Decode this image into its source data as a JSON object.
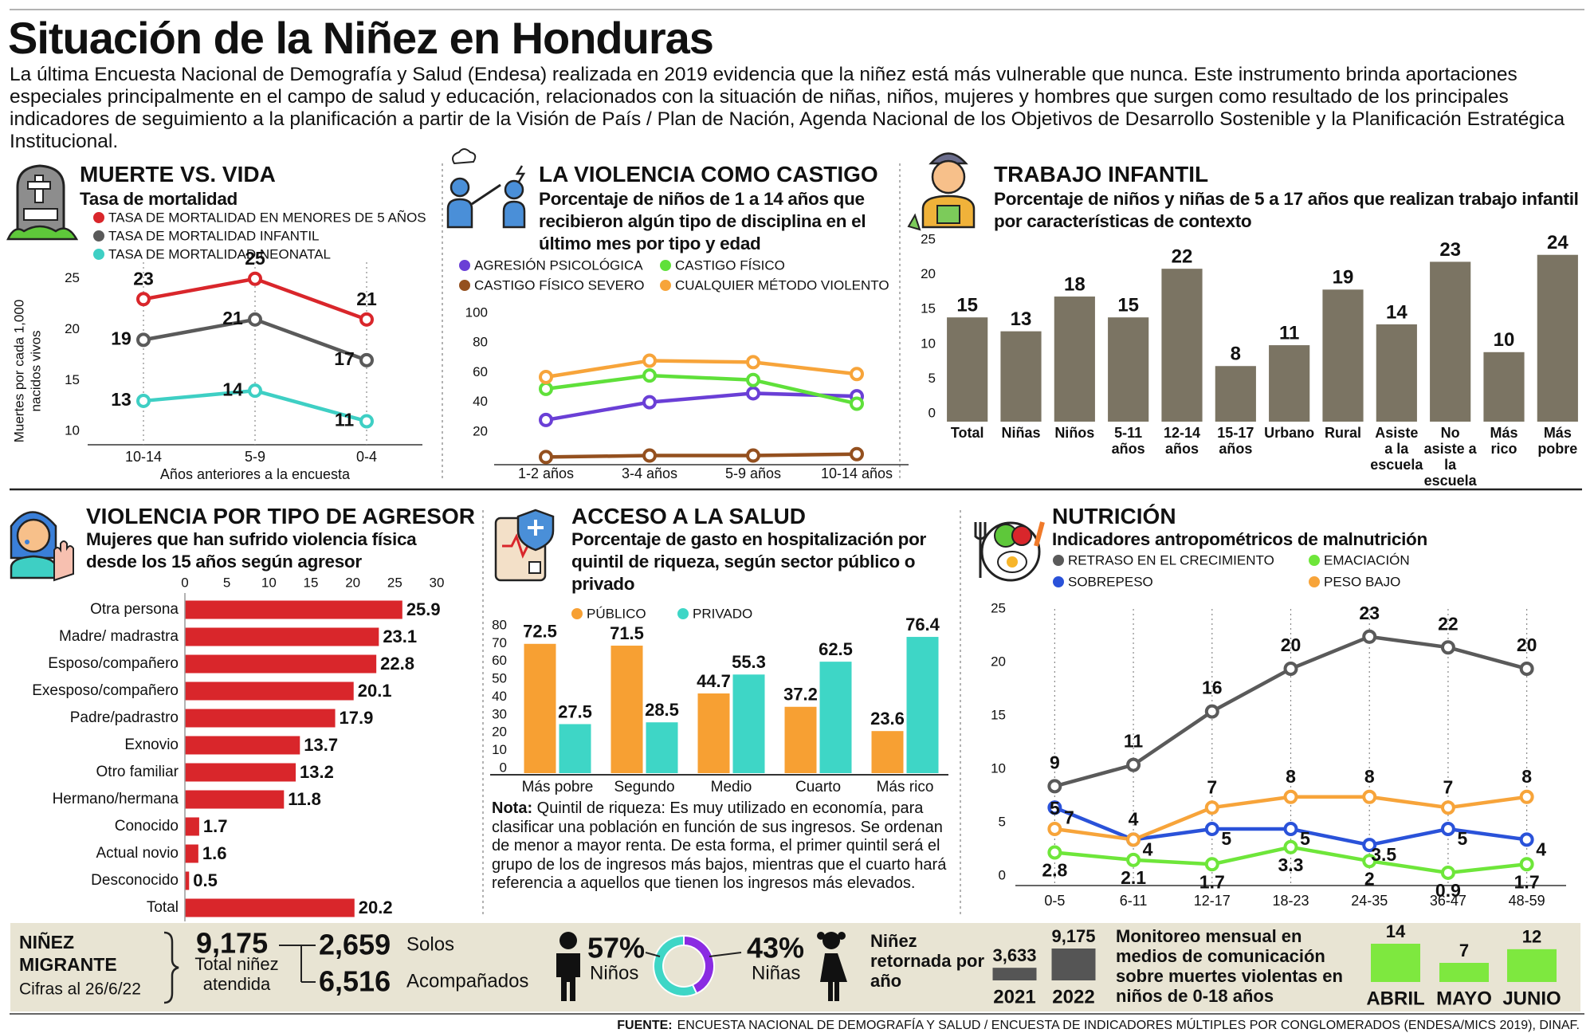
{
  "header": {
    "title": "Situación de la Niñez en Honduras",
    "intro": "La última Encuesta Nacional de Demografía y Salud (Endesa) realizada en 2019 evidencia que la niñez está más vulnerable que nunca. Este instrumento brinda aportaciones especiales principalmente en el campo de salud y educación, relacionados con la situación de niñas, niños, mujeres y hombres que surgen como resultado de los principales indicadores de seguimiento a la planificación a partir de la Visión de País / Plan de Nación, Agenda Nacional de los Objetivos de Desarrollo Sostenible y la Planificación Estratégica Institucional."
  },
  "chart_data": [
    {
      "type": "line",
      "title": "MUERTE VS. VIDA",
      "subtitle": "Tasa de mortalidad",
      "categories": [
        "10-14",
        "5-9",
        "0-4"
      ],
      "series": [
        {
          "name": "TASA DE MORTALIDAD EN MENORES DE 5 AÑOS",
          "color": "#d9262b",
          "values": [
            23,
            25,
            21
          ]
        },
        {
          "name": "TASA DE MORTALIDAD INFANTIL",
          "color": "#5a5a5a",
          "values": [
            19,
            21,
            17
          ]
        },
        {
          "name": "TASA DE MORTALIDAD NEONATAL",
          "color": "#3ecfc4",
          "values": [
            13,
            14,
            11
          ]
        }
      ],
      "ylabel": "Muertes por cada 1,000 nacidos vivos",
      "xlabel": "Años anteriores a la encuesta",
      "ylim": [
        9,
        26
      ],
      "yticks": [
        10,
        15,
        20,
        25
      ],
      "data_labels": true
    },
    {
      "type": "line",
      "title": "LA VIOLENCIA COMO CASTIGO",
      "subtitle": "Porcentaje de niños de 1 a 14 años que recibieron algún tipo de disciplina en el último mes por tipo y edad",
      "categories": [
        "1-2 años",
        "3-4 años",
        "5-9 años",
        "10-14 años"
      ],
      "series": [
        {
          "name": "AGRESIÓN PSICOLÓGICA",
          "color": "#6a3fd6",
          "values": [
            28,
            40,
            46,
            44
          ]
        },
        {
          "name": "CASTIGO FÍSICO",
          "color": "#5fe03a",
          "values": [
            49,
            58,
            55,
            39
          ]
        },
        {
          "name": "CASTIGO FÍSICO SEVERO",
          "color": "#94501f",
          "values": [
            3,
            4,
            4,
            5
          ]
        },
        {
          "name": "CUALQUIER MÉTODO VIOLENTO",
          "color": "#f7a43a",
          "values": [
            57,
            68,
            67,
            59
          ]
        }
      ],
      "ylim": [
        0,
        100
      ],
      "yticks": [
        20,
        40,
        60,
        80,
        100
      ],
      "data_labels": false
    },
    {
      "type": "bar",
      "title": "TRABAJO INFANTIL",
      "subtitle": "Porcentaje de niños y niñas de 5 a 17 años que realizan trabajo infantil por características de contexto",
      "categories": [
        "Total",
        "Niñas",
        "Niños",
        "5-11 años",
        "12-14 años",
        "15-17 años",
        "Urbano",
        "Rural",
        "Asiste a la escuela",
        "No asiste a la escuela",
        "Más rico",
        "Más pobre"
      ],
      "values": [
        15,
        13,
        18,
        15,
        22,
        8,
        11,
        19,
        14,
        23,
        10,
        24
      ],
      "color": "#7b7463",
      "ylim": [
        0,
        25
      ],
      "yticks": [
        0,
        5,
        10,
        15,
        20,
        25
      ]
    },
    {
      "type": "hbar",
      "title": "VIOLENCIA POR TIPO DE AGRESOR",
      "subtitle": "Mujeres que han sufrido violencia física desde los 15 años según agresor",
      "categories": [
        "Otra persona",
        "Madre/ madrastra",
        "Esposo/compañero",
        "Exesposo/compañero",
        "Padre/padrastro",
        "Exnovio",
        "Otro familiar",
        "Hermano/hermana",
        "Conocido",
        "Actual novio",
        "Desconocido",
        "Total"
      ],
      "values": [
        25.9,
        23.1,
        22.8,
        20.1,
        17.9,
        13.7,
        13.2,
        11.8,
        1.7,
        1.6,
        0.5,
        20.2
      ],
      "color": "#d9262b",
      "xlim": [
        0,
        30
      ],
      "xticks": [
        0,
        5,
        10,
        15,
        20,
        25,
        30
      ]
    },
    {
      "type": "grouped_bar",
      "title": "ACCESO A LA SALUD",
      "subtitle": "Porcentaje de gasto en hospitalización por quintil de riqueza, según sector público o privado",
      "categories": [
        "Más pobre",
        "Segundo",
        "Medio",
        "Cuarto",
        "Más rico"
      ],
      "series": [
        {
          "name": "PÚBLICO",
          "color": "#f7a033",
          "values": [
            72.5,
            71.5,
            44.7,
            37.2,
            23.6
          ]
        },
        {
          "name": "PRIVADO",
          "color": "#3ed6c6",
          "values": [
            27.5,
            28.5,
            55.3,
            62.5,
            76.4
          ]
        }
      ],
      "ylim": [
        0,
        80
      ],
      "yticks": [
        0,
        10,
        20,
        30,
        40,
        50,
        60,
        70,
        80
      ],
      "note_label": "Nota:",
      "note": "Quintil de riqueza: Es muy utilizado en economía, para clasificar una población en función de sus ingresos. Se ordenan de menor a mayor renta. De esta forma, el primer quintil será el grupo de los de ingresos más bajos, mientras que el cuarto hará referencia a aquellos que tienen los ingresos más elevados."
    },
    {
      "type": "line",
      "title": "NUTRICIÓN",
      "subtitle": "Indicadores antropométricos de malnutrición",
      "categories": [
        "0-5",
        "6-11",
        "12-17",
        "18-23",
        "24-35",
        "36-47",
        "48-59"
      ],
      "series": [
        {
          "name": "RETRASO EN EL CRECIMIENTO",
          "color": "#5a5a5a",
          "values": [
            9,
            11,
            16,
            20,
            23,
            22,
            20
          ]
        },
        {
          "name": "EMACIACIÓN",
          "color": "#6ee63a",
          "values": [
            2.8,
            2.1,
            1.7,
            3.3,
            2,
            0.9,
            1.7
          ]
        },
        {
          "name": "SOBREPESO",
          "color": "#2a52d9",
          "values": [
            7,
            4,
            5,
            5,
            3.5,
            5,
            4
          ]
        },
        {
          "name": "PESO BAJO",
          "color": "#f7a43a",
          "values": [
            5,
            4,
            7,
            8,
            8,
            7,
            8
          ]
        }
      ],
      "ylim": [
        0,
        25
      ],
      "yticks": [
        0,
        5,
        10,
        15,
        20,
        25
      ],
      "data_labels": true
    },
    {
      "type": "donut",
      "categories": [
        "Niños",
        "Niñas"
      ],
      "values": [
        57,
        43
      ],
      "value_labels": [
        "57%",
        "43%"
      ],
      "colors": [
        "#3ed6c6",
        "#8a2be2"
      ]
    },
    {
      "type": "bar",
      "title": "Niñez retornada por año",
      "categories": [
        "2021",
        "2022"
      ],
      "values": [
        3633,
        9175
      ],
      "value_labels": [
        "3,633",
        "9,175"
      ],
      "color": "#555555"
    },
    {
      "type": "bar",
      "title": "Monitoreo mensual en medios de comunicación sobre muertes violentas en niños de 0-18 años",
      "categories": [
        "ABRIL",
        "MAYO",
        "JUNIO"
      ],
      "values": [
        14,
        7,
        12
      ],
      "color": "#7ee83f"
    }
  ],
  "migrant": {
    "title": "NIÑEZ MIGRANTE",
    "date": "Cifras al 26/6/22",
    "total": "9,175",
    "total_label": "Total niñez atendida",
    "alone": "2,659",
    "alone_label": "Solos",
    "accompanied": "6,516",
    "accompanied_label": "Acompañados"
  },
  "source": {
    "label": "FUENTE:",
    "text": "ENCUESTA NACIONAL DE DEMOGRAFÍA Y SALUD / ENCUESTA DE INDICADORES MÚLTIPLES POR CONGLOMERADOS (ENDESA/MICS 2019), DINAF."
  }
}
